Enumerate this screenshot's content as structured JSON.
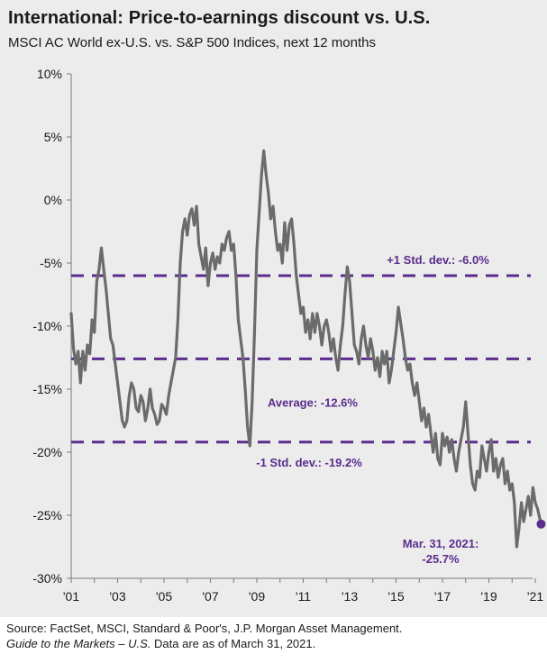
{
  "title": "International: Price-to-earnings discount vs. U.S.",
  "subtitle": "MSCI AC World ex-U.S. vs. S&P 500 Indices, next 12 months",
  "footer": {
    "source": "Source: FactSet, MSCI, Standard & Poor's, J.P. Morgan Asset Management.",
    "guide_italic": "Guide to the Markets – U.S.",
    "guide_rest": " Data are as of March 31, 2021."
  },
  "colors": {
    "line": "#6b6b6b",
    "reference": "#5b2d8e",
    "background": "#ececec"
  },
  "chart_data": {
    "type": "line",
    "title": "International: Price-to-earnings discount vs. U.S.",
    "subtitle": "MSCI AC World ex-U.S. vs. S&P 500 Indices, next 12 months",
    "ylim": [
      -30,
      10
    ],
    "xlim": [
      2001,
      2021.25
    ],
    "y_ticks": [
      "10%",
      "5%",
      "0%",
      "-5%",
      "-10%",
      "-15%",
      "-20%",
      "-25%",
      "-30%"
    ],
    "y_tick_values": [
      10,
      5,
      0,
      -5,
      -10,
      -15,
      -20,
      -25,
      -30
    ],
    "x_ticks": [
      "'01",
      "'03",
      "'05",
      "'07",
      "'09",
      "'11",
      "'13",
      "'15",
      "'17",
      "'19",
      "'21"
    ],
    "x_tick_values": [
      2001,
      2003,
      2005,
      2007,
      2009,
      2011,
      2013,
      2015,
      2017,
      2019,
      2021
    ],
    "grid": false,
    "reference_lines": [
      {
        "label": "+1 Std. dev.: -6.0%",
        "value": -6.0
      },
      {
        "label": "Average: -12.6%",
        "value": -12.6
      },
      {
        "label": "-1 Std. dev.: -19.2%",
        "value": -19.2
      }
    ],
    "endpoint": {
      "label_line1": "Mar. 31, 2021:",
      "label_line2": "-25.7%",
      "x": 2021.25,
      "y": -25.7
    },
    "series": [
      {
        "values": [
          [
            2001.0,
            -9.0
          ],
          [
            2001.1,
            -11.8
          ],
          [
            2001.2,
            -13.0
          ],
          [
            2001.3,
            -12.0
          ],
          [
            2001.4,
            -14.5
          ],
          [
            2001.5,
            -12.0
          ],
          [
            2001.6,
            -13.5
          ],
          [
            2001.7,
            -11.5
          ],
          [
            2001.8,
            -12.2
          ],
          [
            2001.9,
            -9.5
          ],
          [
            2002.0,
            -10.5
          ],
          [
            2002.1,
            -6.5
          ],
          [
            2002.2,
            -5.5
          ],
          [
            2002.3,
            -3.8
          ],
          [
            2002.4,
            -5.5
          ],
          [
            2002.5,
            -7.0
          ],
          [
            2002.6,
            -9.0
          ],
          [
            2002.7,
            -11.0
          ],
          [
            2002.8,
            -11.5
          ],
          [
            2002.9,
            -13.0
          ],
          [
            2003.0,
            -14.5
          ],
          [
            2003.1,
            -16.0
          ],
          [
            2003.2,
            -17.5
          ],
          [
            2003.3,
            -18.0
          ],
          [
            2003.4,
            -17.5
          ],
          [
            2003.5,
            -15.5
          ],
          [
            2003.6,
            -14.5
          ],
          [
            2003.7,
            -15.0
          ],
          [
            2003.8,
            -16.5
          ],
          [
            2003.9,
            -16.8
          ],
          [
            2004.0,
            -15.5
          ],
          [
            2004.1,
            -16.0
          ],
          [
            2004.2,
            -17.5
          ],
          [
            2004.3,
            -16.5
          ],
          [
            2004.4,
            -15.0
          ],
          [
            2004.5,
            -16.5
          ],
          [
            2004.6,
            -17.0
          ],
          [
            2004.7,
            -17.8
          ],
          [
            2004.8,
            -17.5
          ],
          [
            2004.9,
            -16.2
          ],
          [
            2005.0,
            -16.5
          ],
          [
            2005.1,
            -17.0
          ],
          [
            2005.2,
            -15.5
          ],
          [
            2005.3,
            -14.5
          ],
          [
            2005.4,
            -13.5
          ],
          [
            2005.5,
            -12.5
          ],
          [
            2005.6,
            -9.5
          ],
          [
            2005.7,
            -5.0
          ],
          [
            2005.8,
            -2.5
          ],
          [
            2005.9,
            -1.5
          ],
          [
            2006.0,
            -2.8
          ],
          [
            2006.1,
            -1.2
          ],
          [
            2006.2,
            -0.7
          ],
          [
            2006.3,
            -2.0
          ],
          [
            2006.4,
            -0.5
          ],
          [
            2006.5,
            -3.5
          ],
          [
            2006.6,
            -4.5
          ],
          [
            2006.7,
            -5.5
          ],
          [
            2006.8,
            -3.8
          ],
          [
            2006.9,
            -6.8
          ],
          [
            2007.0,
            -5.0
          ],
          [
            2007.1,
            -4.2
          ],
          [
            2007.2,
            -5.5
          ],
          [
            2007.3,
            -4.5
          ],
          [
            2007.4,
            -5.0
          ],
          [
            2007.5,
            -3.5
          ],
          [
            2007.6,
            -4.0
          ],
          [
            2007.7,
            -3.0
          ],
          [
            2007.8,
            -2.5
          ],
          [
            2007.9,
            -4.0
          ],
          [
            2008.0,
            -3.5
          ],
          [
            2008.1,
            -6.0
          ],
          [
            2008.2,
            -9.5
          ],
          [
            2008.3,
            -11.0
          ],
          [
            2008.4,
            -12.5
          ],
          [
            2008.5,
            -15.0
          ],
          [
            2008.6,
            -18.0
          ],
          [
            2008.7,
            -19.5
          ],
          [
            2008.8,
            -16.0
          ],
          [
            2008.9,
            -10.5
          ],
          [
            2009.0,
            -4.0
          ],
          [
            2009.1,
            -1.0
          ],
          [
            2009.2,
            2.0
          ],
          [
            2009.3,
            3.9
          ],
          [
            2009.4,
            2.0
          ],
          [
            2009.5,
            0.5
          ],
          [
            2009.6,
            -1.5
          ],
          [
            2009.7,
            -0.5
          ],
          [
            2009.8,
            -2.5
          ],
          [
            2009.9,
            -4.0
          ],
          [
            2010.0,
            -3.5
          ],
          [
            2010.1,
            -5.0
          ],
          [
            2010.2,
            -1.8
          ],
          [
            2010.3,
            -4.0
          ],
          [
            2010.4,
            -2.0
          ],
          [
            2010.5,
            -1.5
          ],
          [
            2010.6,
            -3.5
          ],
          [
            2010.7,
            -6.0
          ],
          [
            2010.8,
            -7.5
          ],
          [
            2010.9,
            -9.0
          ],
          [
            2011.0,
            -8.5
          ],
          [
            2011.1,
            -10.5
          ],
          [
            2011.2,
            -9.5
          ],
          [
            2011.3,
            -11.0
          ],
          [
            2011.4,
            -9.0
          ],
          [
            2011.5,
            -10.5
          ],
          [
            2011.6,
            -9.0
          ],
          [
            2011.7,
            -10.0
          ],
          [
            2011.8,
            -11.5
          ],
          [
            2011.9,
            -10.0
          ],
          [
            2012.0,
            -9.5
          ],
          [
            2012.1,
            -10.5
          ],
          [
            2012.2,
            -12.0
          ],
          [
            2012.3,
            -11.0
          ],
          [
            2012.4,
            -12.5
          ],
          [
            2012.5,
            -13.5
          ],
          [
            2012.6,
            -11.5
          ],
          [
            2012.7,
            -10.0
          ],
          [
            2012.8,
            -7.5
          ],
          [
            2012.9,
            -5.3
          ],
          [
            2013.0,
            -6.5
          ],
          [
            2013.1,
            -9.0
          ],
          [
            2013.2,
            -11.5
          ],
          [
            2013.3,
            -12.0
          ],
          [
            2013.4,
            -13.0
          ],
          [
            2013.5,
            -11.0
          ],
          [
            2013.6,
            -10.0
          ],
          [
            2013.7,
            -11.5
          ],
          [
            2013.8,
            -12.5
          ],
          [
            2013.9,
            -11.0
          ],
          [
            2014.0,
            -12.0
          ],
          [
            2014.1,
            -13.5
          ],
          [
            2014.2,
            -12.5
          ],
          [
            2014.3,
            -14.0
          ],
          [
            2014.4,
            -12.0
          ],
          [
            2014.5,
            -13.0
          ],
          [
            2014.6,
            -12.0
          ],
          [
            2014.7,
            -14.5
          ],
          [
            2014.8,
            -13.5
          ],
          [
            2014.9,
            -12.0
          ],
          [
            2015.0,
            -10.5
          ],
          [
            2015.1,
            -8.5
          ],
          [
            2015.2,
            -9.8
          ],
          [
            2015.3,
            -11.0
          ],
          [
            2015.4,
            -12.5
          ],
          [
            2015.5,
            -13.5
          ],
          [
            2015.6,
            -13.0
          ],
          [
            2015.7,
            -14.5
          ],
          [
            2015.8,
            -15.5
          ],
          [
            2015.9,
            -14.5
          ],
          [
            2016.0,
            -16.0
          ],
          [
            2016.1,
            -17.5
          ],
          [
            2016.2,
            -16.5
          ],
          [
            2016.3,
            -18.0
          ],
          [
            2016.4,
            -17.0
          ],
          [
            2016.5,
            -18.5
          ],
          [
            2016.6,
            -20.0
          ],
          [
            2016.7,
            -18.5
          ],
          [
            2016.8,
            -20.5
          ],
          [
            2016.9,
            -21.0
          ],
          [
            2017.0,
            -18.5
          ],
          [
            2017.1,
            -19.5
          ],
          [
            2017.2,
            -18.8
          ],
          [
            2017.3,
            -20.0
          ],
          [
            2017.4,
            -19.0
          ],
          [
            2017.5,
            -20.5
          ],
          [
            2017.6,
            -21.5
          ],
          [
            2017.7,
            -20.0
          ],
          [
            2017.8,
            -19.0
          ],
          [
            2017.9,
            -18.0
          ],
          [
            2018.0,
            -16.0
          ],
          [
            2018.1,
            -18.5
          ],
          [
            2018.2,
            -21.0
          ],
          [
            2018.3,
            -22.5
          ],
          [
            2018.4,
            -23.0
          ],
          [
            2018.5,
            -21.5
          ],
          [
            2018.6,
            -22.0
          ],
          [
            2018.7,
            -19.5
          ],
          [
            2018.8,
            -20.5
          ],
          [
            2018.9,
            -21.5
          ],
          [
            2019.0,
            -20.0
          ],
          [
            2019.1,
            -19.0
          ],
          [
            2019.2,
            -21.5
          ],
          [
            2019.3,
            -20.5
          ],
          [
            2019.4,
            -22.0
          ],
          [
            2019.5,
            -21.0
          ],
          [
            2019.6,
            -20.5
          ],
          [
            2019.7,
            -22.5
          ],
          [
            2019.8,
            -21.5
          ],
          [
            2019.9,
            -23.0
          ],
          [
            2020.0,
            -22.5
          ],
          [
            2020.1,
            -24.0
          ],
          [
            2020.2,
            -27.5
          ],
          [
            2020.3,
            -26.0
          ],
          [
            2020.4,
            -24.0
          ],
          [
            2020.5,
            -25.5
          ],
          [
            2020.6,
            -24.5
          ],
          [
            2020.7,
            -23.5
          ],
          [
            2020.8,
            -25.0
          ],
          [
            2020.9,
            -22.8
          ],
          [
            2021.0,
            -24.0
          ],
          [
            2021.1,
            -24.5
          ],
          [
            2021.25,
            -25.7
          ]
        ]
      }
    ]
  }
}
